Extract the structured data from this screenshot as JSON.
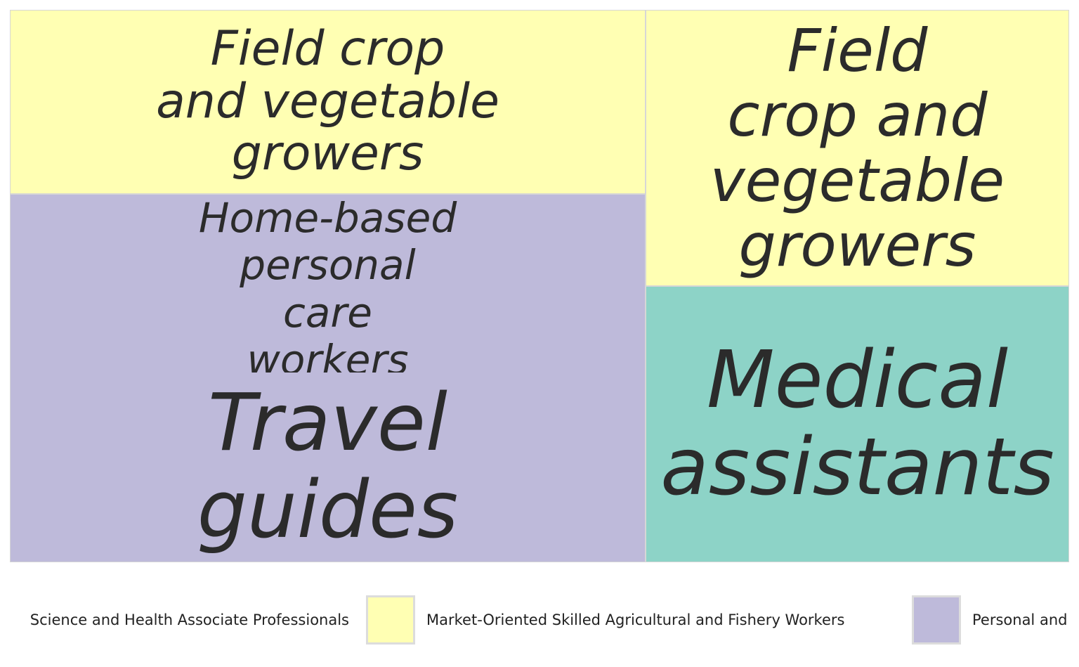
{
  "chart_data": {
    "type": "treemap",
    "tiles": [
      {
        "label": "Field crop\nand vegetable\ngrowers",
        "category": "Market-Oriented Skilled Agricultural and Fishery Workers"
      },
      {
        "label": "Home-based\npersonal\ncare\nworkers",
        "category": "Personal and"
      },
      {
        "label": "Travel\nguides",
        "category": "Personal and"
      },
      {
        "label": "Field\ncrop and\nvegetable\ngrowers",
        "category": "Market-Oriented Skilled Agricultural and Fishery Workers"
      },
      {
        "label": "Medical\nassistants",
        "category": "Life Science and Health Associate Professionals"
      }
    ],
    "legend": [
      {
        "label": "Science and Health Associate Professionals",
        "color": "#8dd3c7"
      },
      {
        "label": "Market-Oriented Skilled Agricultural and Fishery Workers",
        "color": "#ffffb3"
      },
      {
        "label": "Personal and",
        "color": "#bebada"
      }
    ],
    "legend_placement": "bottom"
  }
}
